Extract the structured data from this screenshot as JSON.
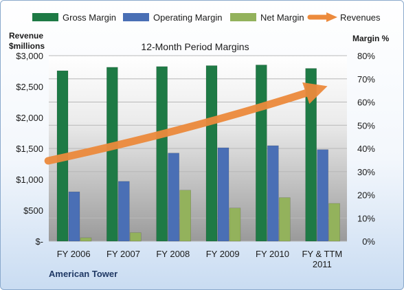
{
  "chart_data": {
    "type": "bar",
    "title": "12-Month Period Margins",
    "company": "American Tower",
    "y_left_label_line1": "Revenue",
    "y_left_label_line2": "$millions",
    "y_right_label": "Margin %",
    "y_left_ticks": [
      "$3,000",
      "$2,500",
      "$2,000",
      "$1,500",
      "$1,000",
      "$500",
      "$-"
    ],
    "y_right_ticks": [
      "80%",
      "70%",
      "60%",
      "50%",
      "40%",
      "30%",
      "20%",
      "10%",
      "0%"
    ],
    "ylim_left": [
      0,
      3000
    ],
    "ylim_right": [
      0,
      80
    ],
    "categories": [
      {
        "line1": "FY 2006",
        "line2": ""
      },
      {
        "line1": "FY 2007",
        "line2": ""
      },
      {
        "line1": "FY 2008",
        "line2": ""
      },
      {
        "line1": "FY 2009",
        "line2": ""
      },
      {
        "line1": "FY 2010",
        "line2": ""
      },
      {
        "line1": "FY & TTM",
        "line2": "2011"
      }
    ],
    "series": [
      {
        "name": "Gross Margin",
        "axis": "right",
        "values": [
          73.5,
          75,
          75.3,
          75.7,
          76,
          74.5
        ]
      },
      {
        "name": "Operating Margin",
        "axis": "right",
        "values": [
          21.3,
          25.8,
          38,
          40.3,
          41.2,
          39.5
        ]
      },
      {
        "name": "Net Margin",
        "axis": "right",
        "values": [
          1.5,
          3.7,
          22,
          14.3,
          18.8,
          16.3
        ]
      }
    ],
    "revenues": {
      "name": "Revenues",
      "axis": "left",
      "start": 1300,
      "end": 2450
    },
    "legend_position": "top",
    "grid": true,
    "colors": {
      "gross": "#1e7a45",
      "operating": "#4a6fb5",
      "net": "#93b25c",
      "revenues": "#ec8a3c",
      "plot_bg_top": "#ffffff",
      "plot_bg_bottom": "#9a9a9a"
    }
  }
}
